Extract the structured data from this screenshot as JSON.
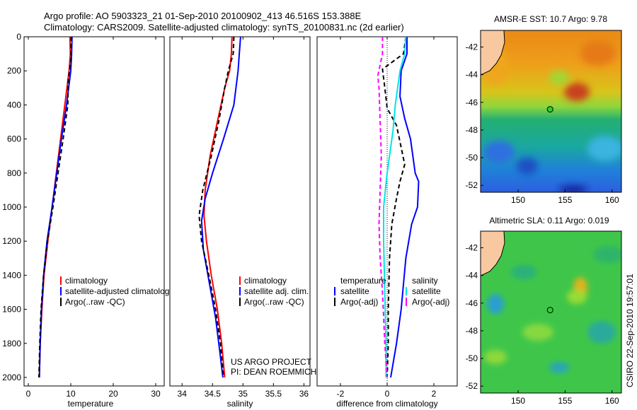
{
  "title_line1": "Argo profile: AO 5903323_21 01-Sep-2010 20100902_413 46.516S 153.388E",
  "title_line2": "Climatology: CARS2009. Satellite-adjusted climatology: synTS_20100831.nc (2d earlier)",
  "credit": "CSIRO 22-Sep-2010 19:57:01",
  "colors": {
    "climatology": "#ff0000",
    "satellite": "#0000ff",
    "argo": "#000000",
    "temp_adj": "#ff00ff",
    "sal_sat": "#00e5e5"
  },
  "chart_data": [
    {
      "type": "line",
      "id": "temperature",
      "xlabel": "temperature",
      "ylabel": "",
      "xlim": [
        -1,
        32
      ],
      "ylim": [
        0,
        2050
      ],
      "y_inverted": true,
      "xticks": [
        "0",
        "10",
        "20",
        "30"
      ],
      "yticks": [
        "0",
        "200",
        "400",
        "600",
        "800",
        "1000",
        "1200",
        "1400",
        "1600",
        "1800",
        "2000"
      ],
      "legend": [
        "climatology",
        "satellite-adjusted climatology",
        "Argo(..raw -QC)"
      ],
      "legend_position": "lower-center",
      "series": [
        {
          "name": "climatology",
          "color": "#ff0000",
          "dash": "solid",
          "points": [
            [
              9.8,
              0
            ],
            [
              9.9,
              100
            ],
            [
              9.6,
              200
            ],
            [
              8.6,
              400
            ],
            [
              7.6,
              600
            ],
            [
              6.6,
              800
            ],
            [
              5.6,
              1000
            ],
            [
              4.6,
              1200
            ],
            [
              3.7,
              1400
            ],
            [
              3.2,
              1600
            ],
            [
              2.8,
              1800
            ],
            [
              2.6,
              2000
            ]
          ]
        },
        {
          "name": "satellite-adjusted climatology",
          "color": "#0000ff",
          "dash": "solid",
          "points": [
            [
              10.3,
              0
            ],
            [
              10.2,
              100
            ],
            [
              10.0,
              200
            ],
            [
              9.0,
              400
            ],
            [
              7.8,
              600
            ],
            [
              6.7,
              800
            ],
            [
              5.6,
              1000
            ],
            [
              4.4,
              1200
            ],
            [
              3.6,
              1400
            ],
            [
              3.1,
              1600
            ],
            [
              2.8,
              1800
            ],
            [
              2.6,
              2000
            ]
          ]
        },
        {
          "name": "Argo(..raw -QC)",
          "color": "#000000",
          "dash": "dash",
          "points": [
            [
              10.1,
              0
            ],
            [
              10.0,
              150
            ],
            [
              9.4,
              250
            ],
            [
              9.3,
              400
            ],
            [
              8.2,
              600
            ],
            [
              7.0,
              800
            ],
            [
              5.8,
              1000
            ],
            [
              4.5,
              1200
            ],
            [
              3.6,
              1400
            ],
            [
              3.0,
              1600
            ],
            [
              2.7,
              1800
            ],
            [
              2.5,
              2000
            ]
          ]
        }
      ]
    },
    {
      "type": "line",
      "id": "salinity",
      "xlabel": "salinity",
      "xlim": [
        33.8,
        36.1
      ],
      "ylim": [
        0,
        2050
      ],
      "y_inverted": true,
      "xticks": [
        "34",
        "34.5",
        "35",
        "35.5",
        "36"
      ],
      "legend": [
        "climatology",
        "satellite adj. clim.",
        "Argo(..raw -QC)"
      ],
      "legend_position": "lower-center",
      "annotation": [
        "US ARGO PROJECT",
        "PI: DEAN ROEMMICH"
      ],
      "series": [
        {
          "name": "climatology",
          "color": "#ff0000",
          "dash": "solid",
          "points": [
            [
              34.82,
              0
            ],
            [
              34.81,
              100
            ],
            [
              34.78,
              200
            ],
            [
              34.7,
              300
            ],
            [
              34.58,
              500
            ],
            [
              34.46,
              700
            ],
            [
              34.38,
              900
            ],
            [
              34.36,
              1050
            ],
            [
              34.4,
              1200
            ],
            [
              34.48,
              1400
            ],
            [
              34.58,
              1600
            ],
            [
              34.65,
              1800
            ],
            [
              34.7,
              2000
            ]
          ]
        },
        {
          "name": "satellite adj. clim.",
          "color": "#0000ff",
          "dash": "solid",
          "points": [
            [
              34.96,
              0
            ],
            [
              34.94,
              100
            ],
            [
              34.92,
              200
            ],
            [
              34.85,
              400
            ],
            [
              34.68,
              600
            ],
            [
              34.5,
              800
            ],
            [
              34.38,
              950
            ],
            [
              34.32,
              1080
            ],
            [
              34.35,
              1250
            ],
            [
              34.45,
              1450
            ],
            [
              34.55,
              1650
            ],
            [
              34.62,
              1850
            ],
            [
              34.67,
              2000
            ]
          ]
        },
        {
          "name": "Argo(..raw -QC)",
          "color": "#000000",
          "dash": "dash",
          "points": [
            [
              34.85,
              0
            ],
            [
              34.84,
              100
            ],
            [
              34.76,
              200
            ],
            [
              34.7,
              300
            ],
            [
              34.6,
              500
            ],
            [
              34.48,
              700
            ],
            [
              34.34,
              900
            ],
            [
              34.28,
              1050
            ],
            [
              34.32,
              1200
            ],
            [
              34.44,
              1400
            ],
            [
              34.55,
              1600
            ],
            [
              34.63,
              1800
            ],
            [
              34.68,
              2000
            ]
          ]
        }
      ]
    },
    {
      "type": "line",
      "id": "difference",
      "xlabel": "difference from climatology",
      "xlim": [
        -3,
        3
      ],
      "ylim": [
        0,
        2050
      ],
      "y_inverted": true,
      "xticks": [
        "-2",
        "0",
        "2"
      ],
      "reference_line_x": 0,
      "legend_groups": [
        {
          "heading": "temperature",
          "items": [
            "satellite",
            "Argo(-adj)"
          ]
        },
        {
          "heading": "salinity",
          "items": [
            "satellite",
            "Argo(-adj)"
          ]
        }
      ],
      "series": [
        {
          "name": "temperature satellite",
          "color": "#0000ff",
          "dash": "solid",
          "points": [
            [
              0.85,
              0
            ],
            [
              0.85,
              100
            ],
            [
              0.6,
              200
            ],
            [
              0.55,
              350
            ],
            [
              0.75,
              480
            ],
            [
              1.0,
              600
            ],
            [
              1.2,
              800
            ],
            [
              1.35,
              850
            ],
            [
              1.3,
              1000
            ],
            [
              1.05,
              1100
            ],
            [
              0.8,
              1300
            ],
            [
              0.6,
              1600
            ],
            [
              0.4,
              1800
            ],
            [
              0.15,
              2000
            ]
          ]
        },
        {
          "name": "temperature Argo(-adj)",
          "color": "#000000",
          "dash": "dash",
          "points": [
            [
              0.8,
              0
            ],
            [
              0.7,
              100
            ],
            [
              -0.2,
              190
            ],
            [
              -0.1,
              300
            ],
            [
              0.0,
              420
            ],
            [
              0.4,
              520
            ],
            [
              0.6,
              650
            ],
            [
              0.75,
              750
            ],
            [
              0.55,
              850
            ],
            [
              0.4,
              950
            ],
            [
              0.2,
              1100
            ],
            [
              0.1,
              1300
            ],
            [
              0.05,
              1600
            ],
            [
              0.05,
              1800
            ],
            [
              0.0,
              2000
            ]
          ]
        },
        {
          "name": "salinity satellite",
          "color": "#00e5e5",
          "dash": "solid",
          "points": [
            [
              0.8,
              0
            ],
            [
              0.75,
              100
            ],
            [
              0.55,
              200
            ],
            [
              0.35,
              400
            ],
            [
              0.25,
              550
            ],
            [
              0.0,
              800
            ],
            [
              -0.15,
              1000
            ],
            [
              -0.15,
              1200
            ],
            [
              -0.1,
              1500
            ],
            [
              -0.05,
              1800
            ],
            [
              -0.05,
              2000
            ]
          ]
        },
        {
          "name": "salinity Argo(-adj)",
          "color": "#ff00ff",
          "dash": "dash",
          "points": [
            [
              -0.2,
              0
            ],
            [
              -0.2,
              100
            ],
            [
              -0.4,
              230
            ],
            [
              -0.35,
              300
            ],
            [
              -0.3,
              500
            ],
            [
              -0.25,
              700
            ],
            [
              -0.3,
              900
            ],
            [
              -0.35,
              1100
            ],
            [
              -0.3,
              1300
            ],
            [
              -0.2,
              1500
            ],
            [
              -0.1,
              1800
            ],
            [
              0.0,
              2000
            ]
          ]
        }
      ]
    },
    {
      "type": "heatmap",
      "id": "sst-map",
      "title": "AMSR-E SST: 10.7 Argo: 9.78",
      "xlim": [
        146,
        161
      ],
      "ylim": [
        -52.5,
        -40.8
      ],
      "xticks": [
        "150",
        "155",
        "160"
      ],
      "yticks": [
        "-42",
        "-44",
        "-46",
        "-48",
        "-50",
        "-52"
      ],
      "marker": [
        153.4,
        -46.5
      ]
    },
    {
      "type": "heatmap",
      "id": "sla-map",
      "title": "Altimetric SLA: 0.11 Argo: 0.019",
      "xlim": [
        146,
        161
      ],
      "ylim": [
        -52.5,
        -40.8
      ],
      "xticks": [
        "150",
        "155",
        "160"
      ],
      "yticks": [
        "-42",
        "-44",
        "-46",
        "-48",
        "-50",
        "-52"
      ],
      "marker": [
        153.4,
        -46.5
      ]
    }
  ]
}
